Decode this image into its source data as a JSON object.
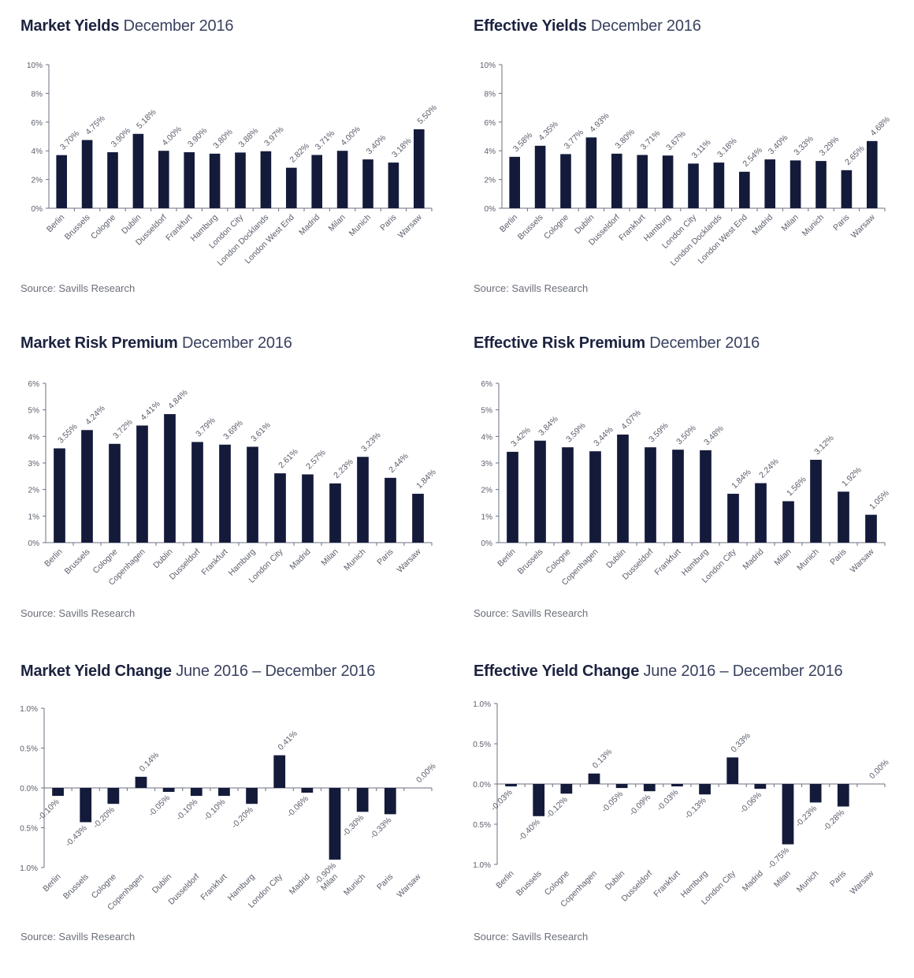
{
  "chart_data": [
    {
      "type": "bar",
      "title_bold": "Market Yields",
      "title_rest": "December 2016",
      "source": "Source: Savills Research",
      "categories": [
        "Berlin",
        "Brussels",
        "Cologne",
        "Dublin",
        "Dusseldorf",
        "Frankfurt",
        "Hamburg",
        "London City",
        "London Docklands",
        "London West End",
        "Madrid",
        "Milan",
        "Munich",
        "Paris",
        "Warsaw"
      ],
      "values": [
        3.7,
        4.75,
        3.9,
        5.18,
        4.0,
        3.9,
        3.8,
        3.88,
        3.97,
        2.82,
        3.71,
        4.0,
        3.4,
        3.18,
        5.5
      ],
      "data_labels": [
        "3.70%",
        "4.75%",
        "3.90%",
        "5.18%",
        "4.00%",
        "3.90%",
        "3.80%",
        "3.88%",
        "3.97%",
        "2.82%",
        "3.71%",
        "4.00%",
        "3.40%",
        "3.18%",
        "5.50%"
      ],
      "yticks": [
        0,
        2,
        4,
        6,
        8,
        10
      ],
      "ytick_labels": [
        "0%",
        "2%",
        "4%",
        "6%",
        "8%",
        "10%"
      ],
      "ylim": [
        0,
        10
      ]
    },
    {
      "type": "bar",
      "title_bold": "Effective Yields",
      "title_rest": "December 2016",
      "source": "Source: Savills Research",
      "categories": [
        "Berlin",
        "Brussels",
        "Cologne",
        "Dublin",
        "Dusseldorf",
        "Frankfurt",
        "Hamburg",
        "London City",
        "London Docklands",
        "London West End",
        "Madrid",
        "Milan",
        "Munich",
        "Paris",
        "Warsaw"
      ],
      "values": [
        3.58,
        4.35,
        3.77,
        4.93,
        3.8,
        3.71,
        3.67,
        3.11,
        3.18,
        2.54,
        3.4,
        3.33,
        3.29,
        2.65,
        4.68
      ],
      "data_labels": [
        "3.58%",
        "4.35%",
        "3.77%",
        "4.93%",
        "3.80%",
        "3.71%",
        "3.67%",
        "3.11%",
        "3.18%",
        "2.54%",
        "3.40%",
        "3.33%",
        "3.29%",
        "2.65%",
        "4.68%"
      ],
      "yticks": [
        0,
        2,
        4,
        6,
        8,
        10
      ],
      "ytick_labels": [
        "0%",
        "2%",
        "4%",
        "6%",
        "8%",
        "10%"
      ],
      "ylim": [
        0,
        10
      ]
    },
    {
      "type": "bar",
      "title_bold": "Market Risk Premium",
      "title_rest": "December 2016",
      "source": "Source: Savills Research",
      "categories": [
        "Berlin",
        "Brussels",
        "Cologne",
        "Copenhagen",
        "Dublin",
        "Dusseldorf",
        "Frankfurt",
        "Hamburg",
        "London City",
        "Madrid",
        "Milan",
        "Munich",
        "Paris",
        "Warsaw"
      ],
      "values": [
        3.55,
        4.24,
        3.72,
        4.41,
        4.84,
        3.79,
        3.69,
        3.61,
        2.61,
        2.57,
        2.23,
        3.23,
        2.44,
        1.84
      ],
      "data_labels": [
        "3.55%",
        "4.24%",
        "3.72%",
        "4.41%",
        "4.84%",
        "3.79%",
        "3.69%",
        "3.61%",
        "2.61%",
        "2.57%",
        "2.23%",
        "3.23%",
        "2.44%",
        "1.84%"
      ],
      "yticks": [
        0,
        1,
        2,
        3,
        4,
        5,
        6
      ],
      "ytick_labels": [
        "0%",
        "1%",
        "2%",
        "3%",
        "4%",
        "5%",
        "6%"
      ],
      "ylim": [
        0,
        6
      ]
    },
    {
      "type": "bar",
      "title_bold": "Effective Risk Premium",
      "title_rest": "December 2016",
      "source": "Source: Savills Research",
      "categories": [
        "Berlin",
        "Brussels",
        "Cologne",
        "Copenhagen",
        "Dublin",
        "Dusseldorf",
        "Frankfurt",
        "Hamburg",
        "London City",
        "Madrid",
        "Milan",
        "Munich",
        "Paris",
        "Warsaw"
      ],
      "values": [
        3.42,
        3.84,
        3.59,
        3.44,
        4.07,
        3.59,
        3.5,
        3.48,
        1.84,
        2.24,
        1.56,
        3.12,
        1.92,
        1.05
      ],
      "data_labels": [
        "3.42%",
        "3.84%",
        "3.59%",
        "3.44%",
        "4.07%",
        "3.59%",
        "3.50%",
        "3.48%",
        "1.84%",
        "2.24%",
        "1.56%",
        "3.12%",
        "1.92%",
        "1.05%"
      ],
      "yticks": [
        0,
        1,
        2,
        3,
        4,
        5,
        6
      ],
      "ytick_labels": [
        "0%",
        "1%",
        "2%",
        "3%",
        "4%",
        "5%",
        "6%"
      ],
      "ylim": [
        0,
        6
      ]
    },
    {
      "type": "bar",
      "title_bold": "Market Yield Change",
      "title_rest": "June 2016 – December 2016",
      "source": "Source: Savills Research",
      "categories": [
        "Berlin",
        "Brussels",
        "Cologne",
        "Copenhagen",
        "Dublin",
        "Dusseldorf",
        "Frankfurt",
        "Hamburg",
        "London City",
        "Madrid",
        "Milan",
        "Munich",
        "Paris",
        "Warsaw"
      ],
      "values": [
        -0.1,
        -0.43,
        -0.2,
        0.14,
        -0.05,
        -0.1,
        -0.1,
        -0.2,
        0.41,
        -0.06,
        -0.9,
        -0.3,
        -0.33,
        0.0
      ],
      "data_labels": [
        "-0.10%",
        "-0.43%",
        "-0.20%",
        "0.14%",
        "-0.05%",
        "-0.10%",
        "-0.10%",
        "-0.20%",
        "0.41%",
        "-0.06%",
        "-0.90%",
        "-0.30%",
        "-0.33%",
        "0.00%"
      ],
      "yticks": [
        1.0,
        0.5,
        0.0,
        -0.5,
        -1.0
      ],
      "ytick_labels": [
        "1.0%",
        "0.5%",
        "0.0%",
        "0.5%",
        "1.0%"
      ],
      "ylim": [
        -1.0,
        1.0
      ]
    },
    {
      "type": "bar",
      "title_bold": "Effective Yield Change",
      "title_rest": "June 2016 – December 2016",
      "source": "Source: Savills Research",
      "categories": [
        "Berlin",
        "Brussels",
        "Cologne",
        "Copenhagen",
        "Dublin",
        "Dusseldorf",
        "Frankfurt",
        "Hamburg",
        "London City",
        "Madrid",
        "Milan",
        "Munich",
        "Paris",
        "Warsaw"
      ],
      "values": [
        -0.03,
        -0.4,
        -0.12,
        0.13,
        -0.05,
        -0.09,
        -0.03,
        -0.13,
        0.33,
        -0.06,
        -0.75,
        -0.23,
        -0.28,
        0.0
      ],
      "data_labels": [
        "-0.03%",
        "-0.40%",
        "-0.12%",
        "0.13%",
        "-0.05%",
        "-0.09%",
        "-0.03%",
        "-0.13%",
        "0.33%",
        "-0.06%",
        "-0.75%",
        "-0.23%",
        "-0.28%",
        "0.00%"
      ],
      "yticks": [
        1.0,
        0.5,
        0.0,
        -0.5,
        -1.0
      ],
      "ytick_labels": [
        "1.0%",
        "0.5%",
        "0.0%",
        "0.5%",
        "1.0%"
      ],
      "ylim": [
        -1.0,
        1.0
      ]
    }
  ],
  "colors": {
    "bar": "#141a3a",
    "axis": "#6d7080",
    "title": "#1c2340",
    "label": "#5a5e6b"
  }
}
